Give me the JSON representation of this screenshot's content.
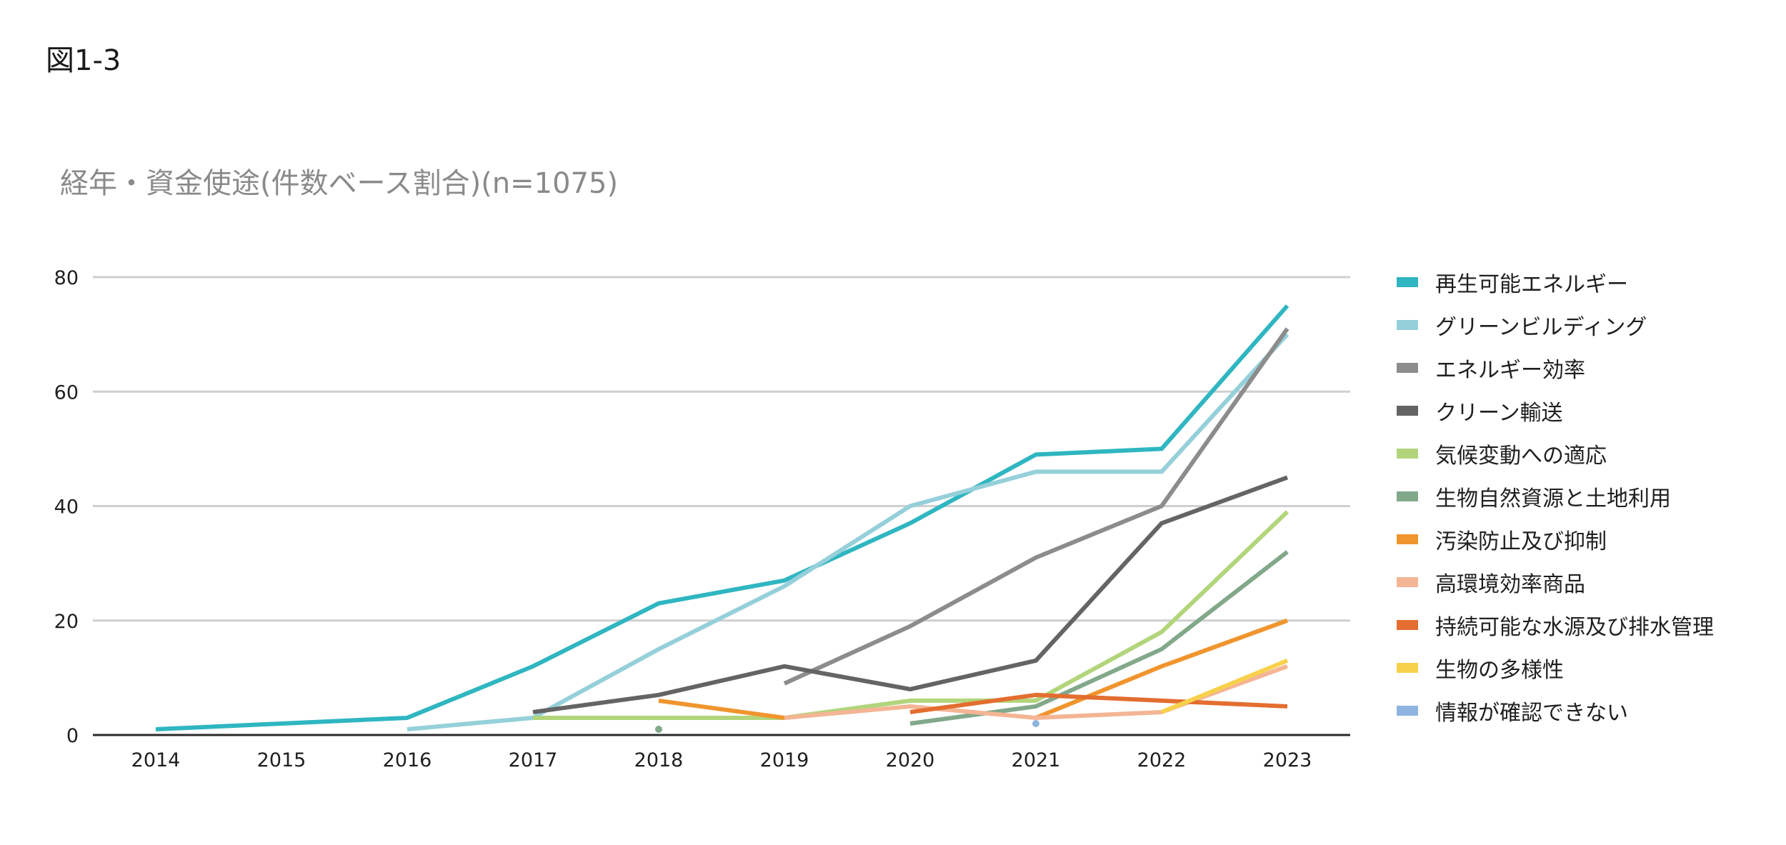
{
  "figure_label": "図1-3",
  "chart_data": {
    "type": "line",
    "title": "経年・資金使途(件数ベース割合)(n=1075)",
    "xlabel": "",
    "ylabel": "",
    "categories": [
      "2014",
      "2015",
      "2016",
      "2017",
      "2018",
      "2019",
      "2020",
      "2021",
      "2022",
      "2023"
    ],
    "ylim": [
      0,
      80
    ],
    "yticks": [
      0,
      20,
      40,
      60,
      80
    ],
    "grid": true,
    "legend_position": "right",
    "series": [
      {
        "name": "再生可能エネルギー",
        "color": "#2fb6c1",
        "values": [
          1,
          2,
          3,
          12,
          23,
          27,
          37,
          49,
          50,
          75
        ]
      },
      {
        "name": "グリーンビルディング",
        "color": "#95d0da",
        "values": [
          null,
          null,
          1,
          3,
          15,
          26,
          40,
          46,
          46,
          70
        ]
      },
      {
        "name": "エネルギー効率",
        "color": "#8c8c8c",
        "values": [
          null,
          null,
          null,
          null,
          null,
          9,
          19,
          31,
          40,
          71
        ]
      },
      {
        "name": "クリーン輸送",
        "color": "#646464",
        "values": [
          null,
          null,
          null,
          4,
          7,
          12,
          8,
          13,
          37,
          45
        ]
      },
      {
        "name": "気候変動への適応",
        "color": "#b2d57b",
        "values": [
          null,
          null,
          null,
          3,
          3,
          3,
          6,
          6,
          18,
          39
        ]
      },
      {
        "name": "生物自然資源と土地利用",
        "color": "#82a88a",
        "values": [
          null,
          null,
          null,
          null,
          1,
          null,
          2,
          5,
          15,
          32
        ]
      },
      {
        "name": "汚染防止及び抑制",
        "color": "#f0952e",
        "values": [
          null,
          null,
          null,
          null,
          6,
          3,
          null,
          3,
          12,
          20
        ]
      },
      {
        "name": "高環境効率商品",
        "color": "#f4b595",
        "values": [
          null,
          null,
          null,
          null,
          null,
          3,
          5,
          3,
          4,
          12
        ]
      },
      {
        "name": "持続可能な水源及び排水管理",
        "color": "#e36e30",
        "values": [
          null,
          null,
          null,
          null,
          null,
          null,
          4,
          7,
          6,
          5
        ]
      },
      {
        "name": "生物の多様性",
        "color": "#f8d14c",
        "values": [
          null,
          null,
          null,
          null,
          null,
          null,
          null,
          null,
          4,
          13
        ]
      },
      {
        "name": "情報が確認できない",
        "color": "#8fb4e0",
        "values": [
          null,
          null,
          null,
          null,
          null,
          null,
          null,
          2,
          null,
          null
        ]
      }
    ]
  }
}
